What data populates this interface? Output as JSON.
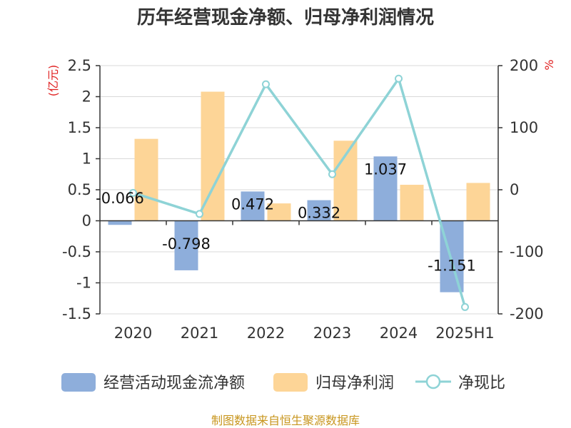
{
  "title": "历年经营现金净额、归母净利润情况",
  "source": "制图数据来自恒生聚源数据库",
  "chart_data": {
    "type": "bar",
    "categories": [
      "2020",
      "2021",
      "2022",
      "2023",
      "2024",
      "2025H1"
    ],
    "series": [
      {
        "name": "经营活动现金流净额",
        "kind": "bar",
        "axis": "left",
        "color": "#8eaedb",
        "values": [
          -0.066,
          -0.798,
          0.472,
          0.332,
          1.037,
          -1.151
        ],
        "labels": [
          "-0.066",
          "-0.798",
          "0.472",
          "0.332",
          "1.037",
          "-1.151"
        ]
      },
      {
        "name": "归母净利润",
        "kind": "bar",
        "axis": "left",
        "color": "#fdd597",
        "values": [
          1.32,
          2.08,
          0.28,
          1.29,
          0.58,
          0.61
        ]
      },
      {
        "name": "净现比",
        "kind": "line",
        "axis": "right",
        "color": "#8ed3d6",
        "values": [
          -5,
          -39,
          170,
          25,
          179,
          -189
        ]
      }
    ],
    "y_left": {
      "unit": "(亿元)",
      "min": -1.5,
      "max": 2.5,
      "ticks": [
        "2.5",
        "2",
        "1.5",
        "1",
        "0.5",
        "0",
        "-0.5",
        "-1",
        "-1.5"
      ]
    },
    "y_right": {
      "unit": "%",
      "min": -200,
      "max": 200,
      "ticks": [
        "200",
        "100",
        "0",
        "-100",
        "-200"
      ]
    },
    "grid": true,
    "legend_position": "bottom"
  }
}
